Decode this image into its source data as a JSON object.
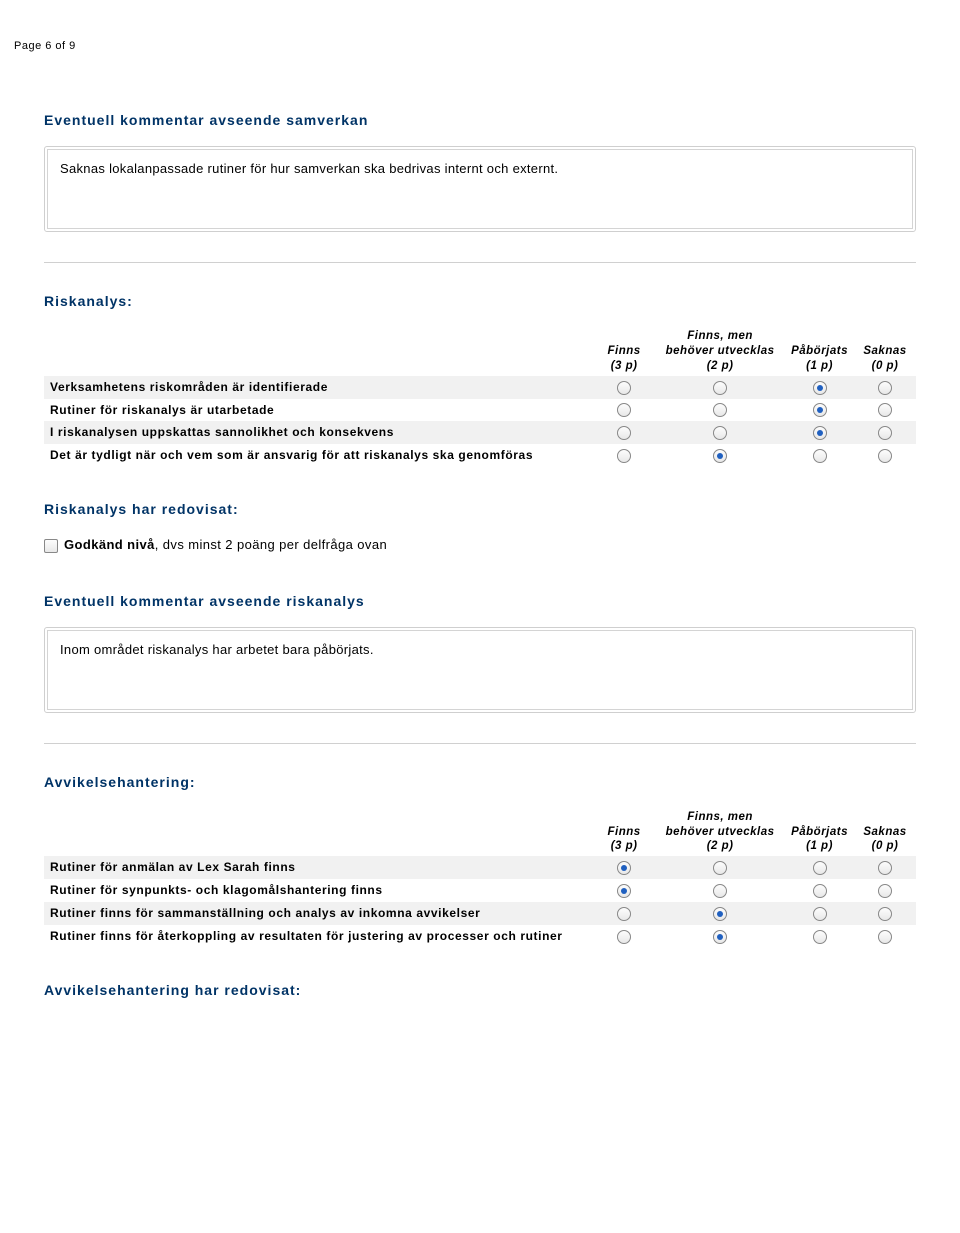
{
  "page_header": "Page 6 of 9",
  "section_samverkan_title": "Eventuell kommentar avseende samverkan",
  "comment_samverkan": "Saknas lokalanpassade rutiner för hur samverkan ska bedrivas internt och externt.",
  "riskanalys_title": "Riskanalys:",
  "riskanalys_headers": {
    "c1_l1": "Finns",
    "c1_l2": "(3 p)",
    "c2_l1": "Finns, men",
    "c2_l2": "behöver utvecklas",
    "c2_l3": "(2 p)",
    "c3_l1": "Påbörjats",
    "c3_l2": "(1 p)",
    "c4_l1": "Saknas",
    "c4_l2": "(0 p)"
  },
  "riskanalys_rows": {
    "r0": "Verksamhetens riskområden är identifierade",
    "r1": "Rutiner för riskanalys är utarbetade",
    "r2": "I riskanalysen uppskattas sannolikhet och konsekvens",
    "r3": "Det är tydligt när och vem som är ansvarig för att riskanalys ska genomföras"
  },
  "riskanalys_selected": {
    "r0": 2,
    "r1": 2,
    "r2": 2,
    "r3": 1
  },
  "riskanalys_redovisat_title": "Riskanalys har redovisat:",
  "riskanalys_cb_bold": "Godkänd nivå",
  "riskanalys_cb_rest": ", dvs minst 2 poäng per delfråga ovan",
  "riskanalys_comment_title": "Eventuell kommentar avseende riskanalys",
  "comment_riskanalys": "Inom området riskanalys har arbetet bara påbörjats.",
  "avvikelse_title": "Avvikelsehantering:",
  "avvikelse_rows": {
    "r0": "Rutiner för anmälan av Lex Sarah finns",
    "r1": "Rutiner för synpunkts- och klagomålshantering finns",
    "r2": "Rutiner finns för sammanställning och analys av inkomna avvikelser",
    "r3": "Rutiner finns för återkoppling av resultaten för justering av processer och rutiner"
  },
  "avvikelse_selected": {
    "r0": 0,
    "r1": 0,
    "r2": 1,
    "r3": 1
  },
  "avvikelse_redovisat_title": "Avvikelsehantering har redovisat:",
  "colors": {
    "heading": "#003366",
    "shaded_row": "#f1f1f1",
    "border": "#cfcfcf",
    "radio_dot": "#2060c0"
  }
}
